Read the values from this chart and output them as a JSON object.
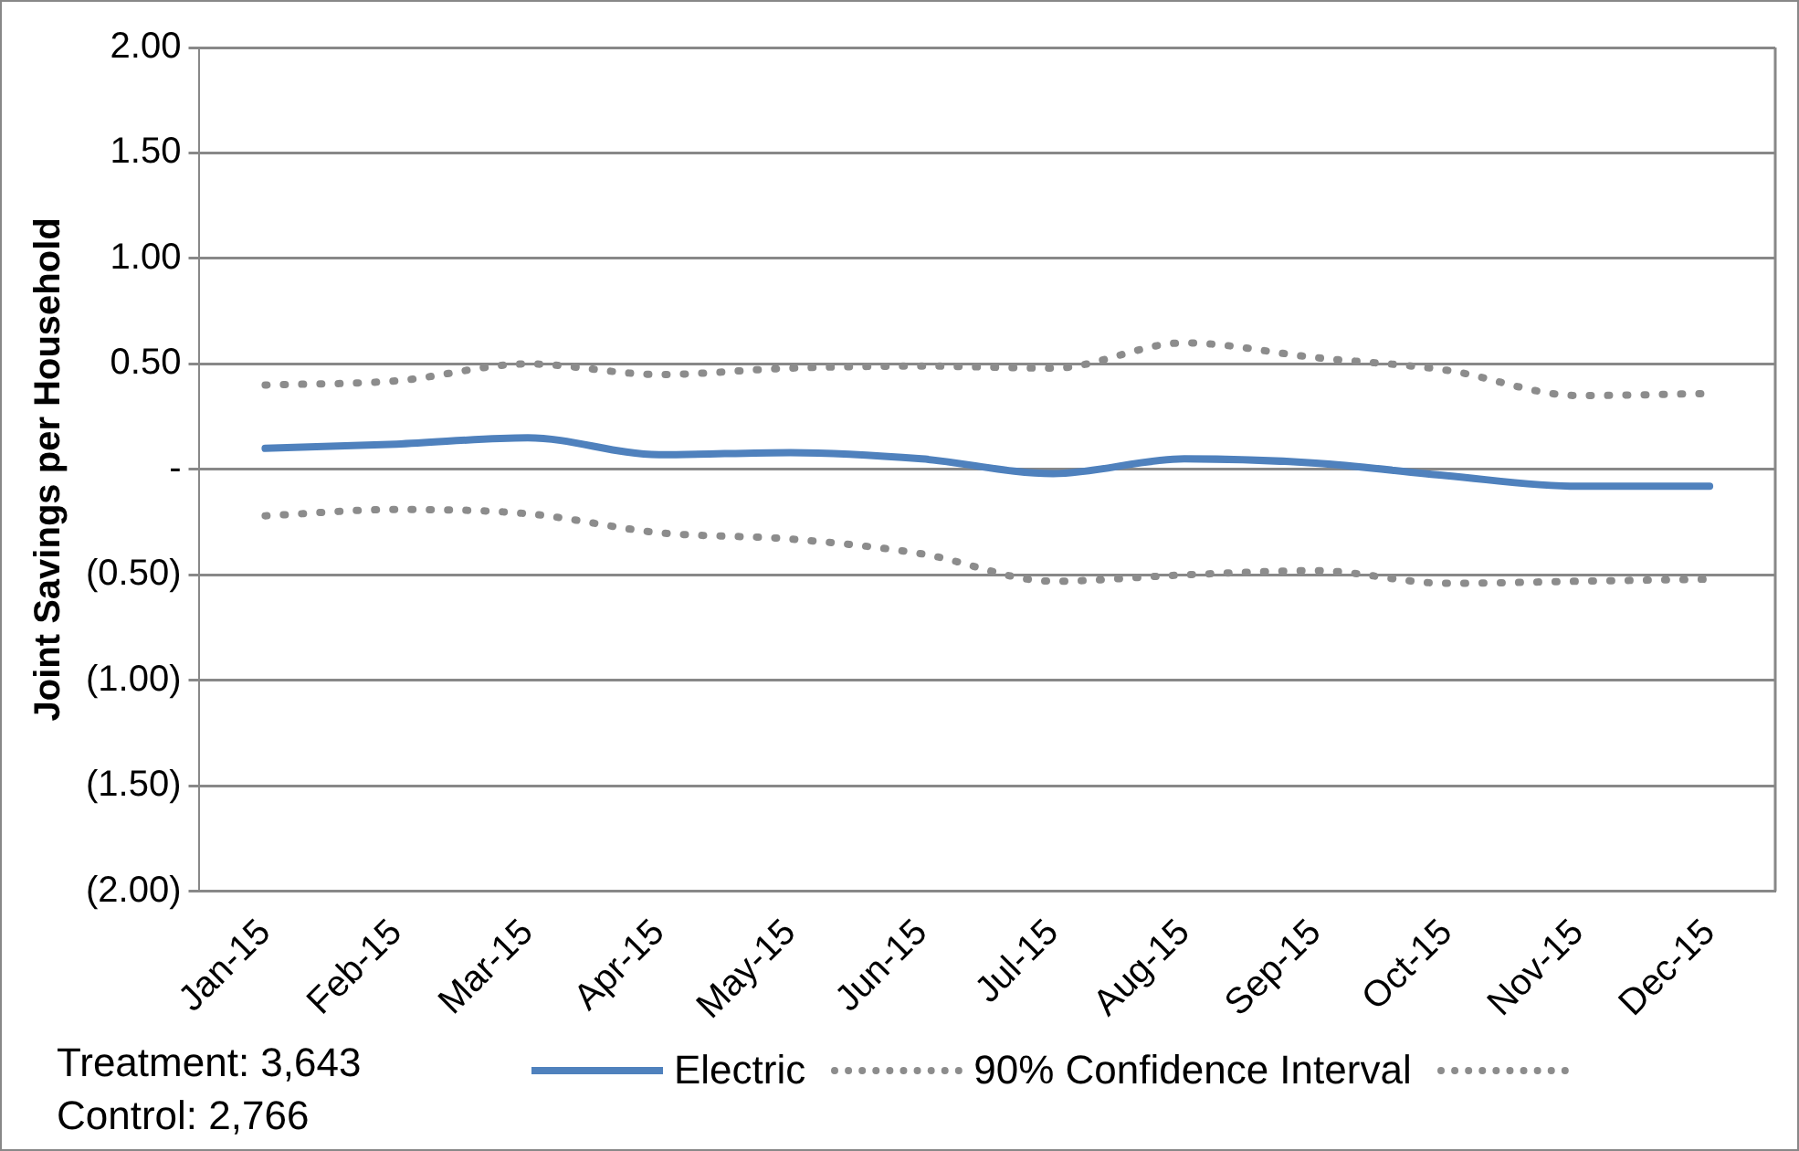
{
  "chart_data": {
    "type": "line",
    "ylabel": "Joint Savings per Household",
    "categories": [
      "Jan-15",
      "Feb-15",
      "Mar-15",
      "Apr-15",
      "May-15",
      "Jun-15",
      "Jul-15",
      "Aug-15",
      "Sep-15",
      "Oct-15",
      "Nov-15",
      "Dec-15"
    ],
    "series": [
      {
        "name": "Electric",
        "color": "#4f81bd",
        "line_style": "solid",
        "values": [
          0.1,
          0.12,
          0.15,
          0.07,
          0.08,
          0.05,
          -0.02,
          0.05,
          0.03,
          -0.03,
          -0.08,
          -0.08
        ]
      },
      {
        "name": "90% Confidence Interval",
        "color": "#8c8c8c",
        "line_style": "dotted",
        "values": [
          0.4,
          0.42,
          0.5,
          0.45,
          0.48,
          0.49,
          0.48,
          0.6,
          0.53,
          0.47,
          0.35,
          0.36
        ]
      },
      {
        "color": "#8c8c8c",
        "line_style": "dotted",
        "values": [
          -0.22,
          -0.19,
          -0.21,
          -0.3,
          -0.33,
          -0.4,
          -0.53,
          -0.5,
          -0.48,
          -0.54,
          -0.53,
          -0.52
        ]
      }
    ],
    "ylim": [
      -2,
      2
    ],
    "yticks": [
      {
        "value": -2,
        "label": "(2.00)"
      },
      {
        "value": -1.5,
        "label": "(1.50)"
      },
      {
        "value": -1,
        "label": "(1.00)"
      },
      {
        "value": -0.5,
        "label": "(0.50)"
      },
      {
        "value": 0,
        "label": "-"
      },
      {
        "value": 0.5,
        "label": "0.50"
      },
      {
        "value": 1,
        "label": "1.00"
      },
      {
        "value": 1.5,
        "label": "1.50"
      },
      {
        "value": 2,
        "label": "2.00"
      }
    ],
    "grid": "y",
    "legend": "bottom",
    "marker": "none",
    "annotations": [
      "Treatment: 3,643",
      "Control: 2,766"
    ]
  }
}
